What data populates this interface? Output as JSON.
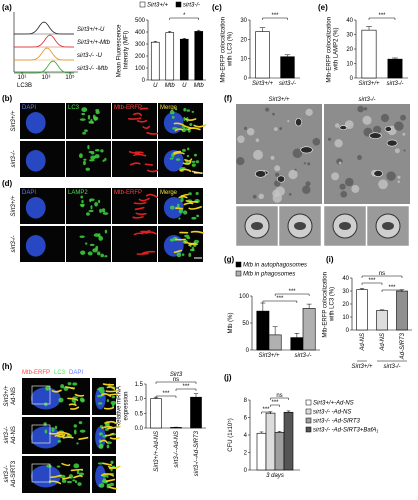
{
  "panels": {
    "a": "(a)",
    "b": "(b)",
    "c": "(c)",
    "d": "(d)",
    "e": "(e)",
    "f": "(f)",
    "g": "(g)",
    "h": "(h)",
    "i": "(i)",
    "j": "(j)"
  },
  "flow": {
    "traces": [
      {
        "name": "Sirt3+/+-U",
        "color": "#222222"
      },
      {
        "name": "Sirt3+/+-Mtb",
        "color": "#d62728"
      },
      {
        "name": "sirt3-/- -U",
        "color": "#e08a1e"
      },
      {
        "name": "sirt3-/- -Mtb",
        "color": "#2ca02c"
      }
    ],
    "x_label": "LC3B",
    "xticks": [
      "10¹",
      "10³",
      "10⁵"
    ]
  },
  "image_panels": {
    "b": {
      "channels": [
        "DAPI",
        "LC3",
        "Mtb-ERFP",
        "Merge"
      ],
      "rows": [
        "Sirt3+/+",
        "sirt3-/-"
      ]
    },
    "d": {
      "channels": [
        "DAPI",
        "LAMP2",
        "Mtb-ERFP",
        "Merge"
      ],
      "rows": [
        "Sirt3+/+",
        "sirt3-/-"
      ]
    },
    "f": {
      "columns": [
        "Sirt3+/+",
        "sirt3-/-"
      ]
    },
    "h": {
      "channels": [
        "Mtb-ERFP",
        "LC3",
        "DAPI"
      ],
      "rows": [
        [
          "Sirt3+/+",
          "Ad-NS"
        ],
        [
          "sirt3-/-",
          "Ad-NS"
        ],
        [
          "sirt3-/-",
          "Ad-SIRT3"
        ]
      ]
    }
  },
  "chart_data": [
    {
      "type": "bar",
      "y_label": "Mean Fluorescence Intensity (MFI)",
      "categories": [
        "U",
        "Mtb",
        "U",
        "Mtb"
      ],
      "values": [
        315,
        395,
        340,
        405
      ],
      "errors": [
        8,
        10,
        8,
        10
      ],
      "colors": [
        "#ffffff",
        "#ffffff",
        "#000000",
        "#000000"
      ],
      "legend": [
        {
          "name": "Sirt3+/+",
          "color": "#ffffff"
        },
        {
          "name": "sirt3-/-",
          "color": "#000000"
        }
      ],
      "ylim": [
        0,
        500
      ],
      "yticks": [
        0,
        100,
        200,
        300,
        400,
        500
      ],
      "annotations": [
        "*"
      ]
    },
    {
      "type": "bar",
      "y_label": "Mtb-ERFP colocalization with LC3 (%)",
      "categories": [
        "Sirt3+/+",
        "sirt3-/-"
      ],
      "values": [
        24,
        11
      ],
      "errors": [
        2,
        1
      ],
      "colors": [
        "#ffffff",
        "#000000"
      ],
      "ylim": [
        0,
        30
      ],
      "yticks": [
        0,
        10,
        20,
        30
      ],
      "annotations": [
        "***"
      ]
    },
    {
      "type": "bar",
      "y_label": "Mtb-ERFP colocalization with LAMP2 (%)",
      "categories": [
        "Sirt3+/+",
        "sirt3-/-"
      ],
      "values": [
        33,
        13
      ],
      "errors": [
        2.5,
        0.8
      ],
      "colors": [
        "#ffffff",
        "#000000"
      ],
      "ylim": [
        0,
        40
      ],
      "yticks": [
        0,
        10,
        20,
        30,
        40
      ],
      "annotations": [
        "***"
      ]
    },
    {
      "type": "grouped_bar",
      "y_label": "Mtb (%)",
      "categories": [
        "Sirt3+/+",
        "sirt3-/-"
      ],
      "series": [
        {
          "name": "Mtb in autophagosomes",
          "color": "#000000",
          "values": [
            72,
            23
          ],
          "errors": [
            15,
            8
          ]
        },
        {
          "name": "Mtb in phagosomes",
          "color": "#b0b0b0",
          "values": [
            28,
            77
          ],
          "errors": [
            15,
            8
          ]
        }
      ],
      "ylim": [
        0,
        100
      ],
      "yticks": [
        0,
        50,
        100
      ],
      "annotations": [
        "***",
        "***"
      ]
    },
    {
      "type": "bar",
      "y_label": "Mtb-ERFP colocalization with LC3 (%)",
      "categories": [
        "Ad-NS",
        "Ad-NS",
        "Ad-SIRT3"
      ],
      "groups": [
        "Sirt3+/+",
        "sirt3-/-"
      ],
      "values": [
        31,
        15,
        30
      ],
      "errors": [
        1,
        0.5,
        1
      ],
      "colors": [
        "#ffffff",
        "#dddddd",
        "#909090"
      ],
      "ylim": [
        0,
        40
      ],
      "yticks": [
        0,
        10,
        20,
        30,
        40
      ],
      "annotations": [
        "ns",
        "***",
        "***"
      ]
    },
    {
      "type": "bar",
      "title": "Sirt3",
      "y_label": "Relative mRNA expression",
      "categories": [
        "Sirt3+/+-Ad-NS",
        "sirt3-/--Ad-NS",
        "sirt3-/--Ad-SIRT3"
      ],
      "values": [
        1.0,
        0.02,
        1.05
      ],
      "errors": [
        0.05,
        0.01,
        0.12
      ],
      "colors": [
        "#ffffff",
        "#000000",
        "#000000"
      ],
      "ylim": [
        0,
        1.5
      ],
      "yticks": [
        {
          "value": 0,
          "label": "0.0"
        },
        {
          "value": 0.5,
          "label": "0.5"
        },
        {
          "value": 1,
          "label": "1.0"
        },
        {
          "value": 1.5,
          "label": "1.5"
        }
      ],
      "annotations": [
        "***",
        "***",
        "ns"
      ]
    },
    {
      "type": "grouped_bar",
      "y_label": "CFU (1x10⁵)",
      "categories": [
        "3 days"
      ],
      "series": [
        {
          "name": "Sirt3+/+-Ad-NS",
          "color": "#ffffff",
          "values": [
            4.2
          ],
          "errors": [
            0.15
          ]
        },
        {
          "name": "sirt3-/- -Ad-NS",
          "color": "#dddddd",
          "values": [
            6.5
          ],
          "errors": [
            0.15
          ]
        },
        {
          "name": "sirt3-/- -Ad-SIRT3",
          "color": "#a0a0a0",
          "values": [
            4.3
          ],
          "errors": [
            0.12
          ]
        },
        {
          "name": "sirt3-/- -Ad-SIRT3+BafA₁",
          "color": "#555555",
          "values": [
            6.6
          ],
          "errors": [
            0.15
          ]
        }
      ],
      "ylim": [
        0,
        8
      ],
      "yticks": [
        0,
        2,
        4,
        6,
        8
      ],
      "annotations": [
        "***",
        "***",
        "ns"
      ]
    }
  ]
}
